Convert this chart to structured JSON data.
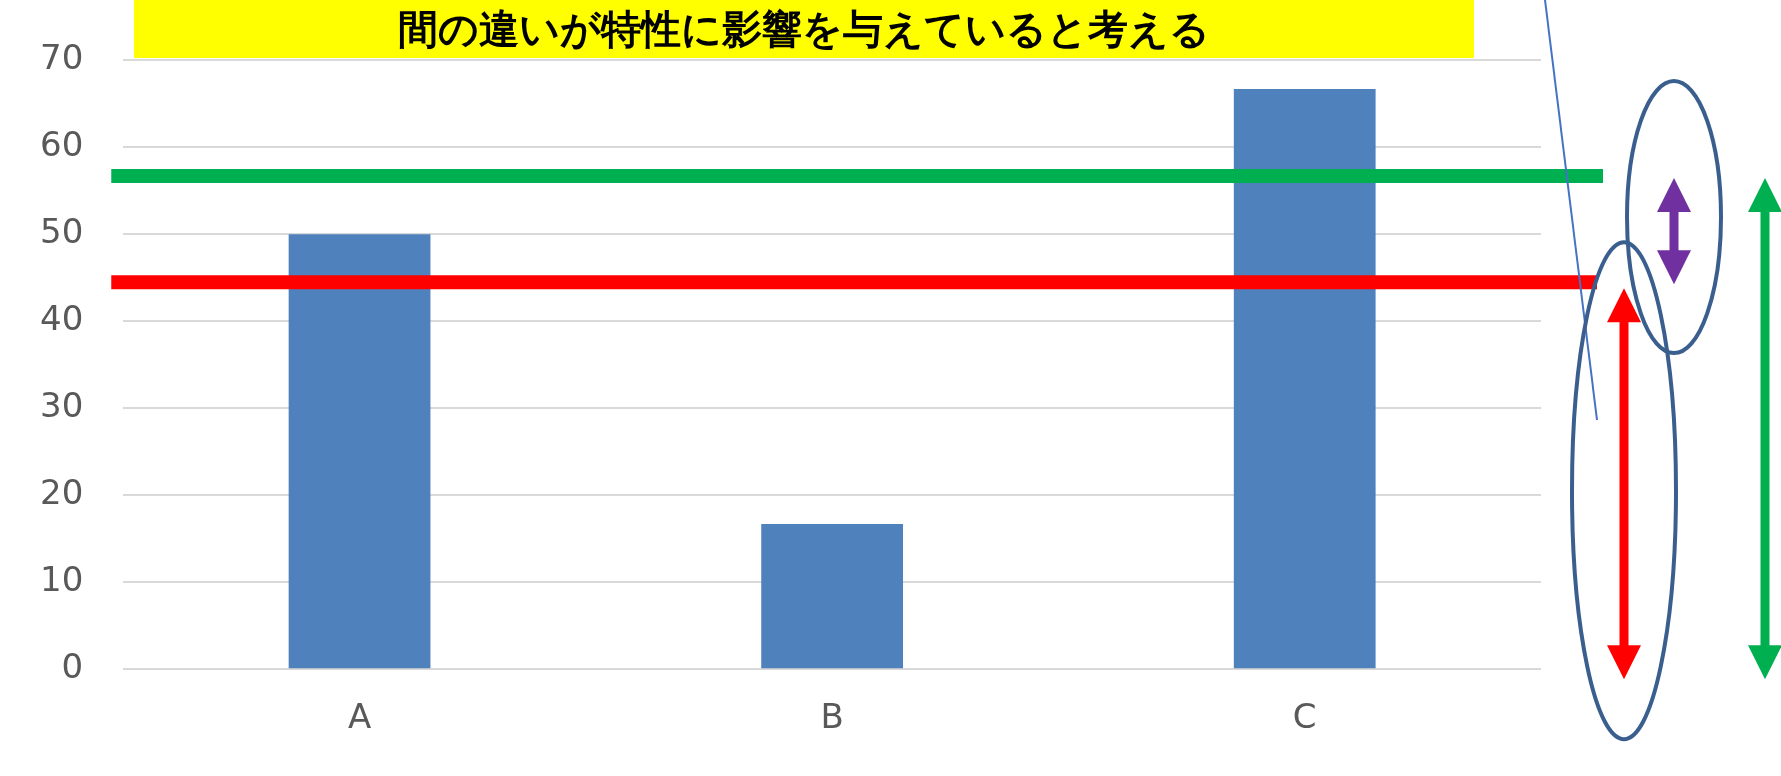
{
  "chart_data": {
    "type": "bar",
    "categories": [
      "A",
      "B",
      "C"
    ],
    "values": [
      50,
      16.7,
      66.7
    ],
    "color": "#4f81bd",
    "ylim": [
      0,
      70
    ],
    "yticks": [
      0,
      10,
      20,
      30,
      40,
      50,
      60,
      70
    ],
    "grid": "y",
    "ref_lines": [
      {
        "axis": "y",
        "value": 56.7,
        "color": "#00b050"
      },
      {
        "axis": "y",
        "value": 44.5,
        "color": "#ff0000"
      }
    ],
    "annotations": [
      "間の違いが特性に影響を与えていると考える"
    ]
  }
}
